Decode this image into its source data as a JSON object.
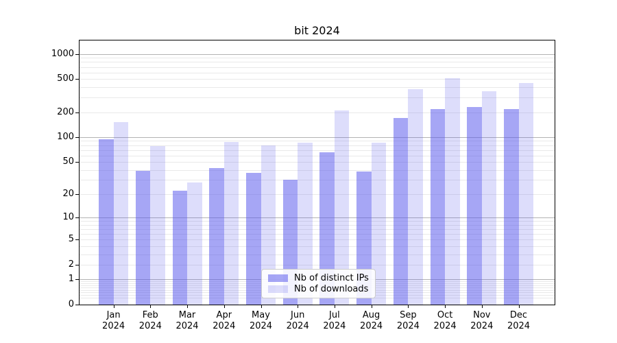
{
  "chart_data": {
    "type": "bar",
    "title": "bit 2024",
    "categories": [
      "Jan 2024",
      "Feb 2024",
      "Mar 2024",
      "Apr 2024",
      "May 2024",
      "Jun 2024",
      "Jul 2024",
      "Aug 2024",
      "Sep 2024",
      "Oct 2024",
      "Nov 2024",
      "Dec 2024"
    ],
    "series": [
      {
        "name": "Nb of distinct IPs",
        "values": [
          95,
          39,
          22,
          42,
          37,
          30,
          65,
          38,
          170,
          220,
          233,
          219
        ]
      },
      {
        "name": "Nb of downloads",
        "values": [
          153,
          78,
          28,
          87,
          79,
          86,
          210,
          86,
          380,
          515,
          358,
          448
        ]
      }
    ],
    "xlabel": "",
    "ylabel": "",
    "yscale": "log1p",
    "ylim": [
      0,
      1450
    ],
    "yticks": [
      0,
      1,
      2,
      5,
      10,
      20,
      50,
      100,
      200,
      500,
      1000
    ],
    "grid": "major-and-minor-horizontal",
    "legend_position": "lower-center"
  },
  "colors": {
    "bar_ips": "rgba(85,85,235,0.52)",
    "bar_downloads": "rgba(85,85,235,0.20)",
    "grid_major": "#b3b3b3",
    "grid_minor": "#e9e9e9",
    "axis": "#000000",
    "background": "#ffffff",
    "legend_border": "#cccccc"
  }
}
